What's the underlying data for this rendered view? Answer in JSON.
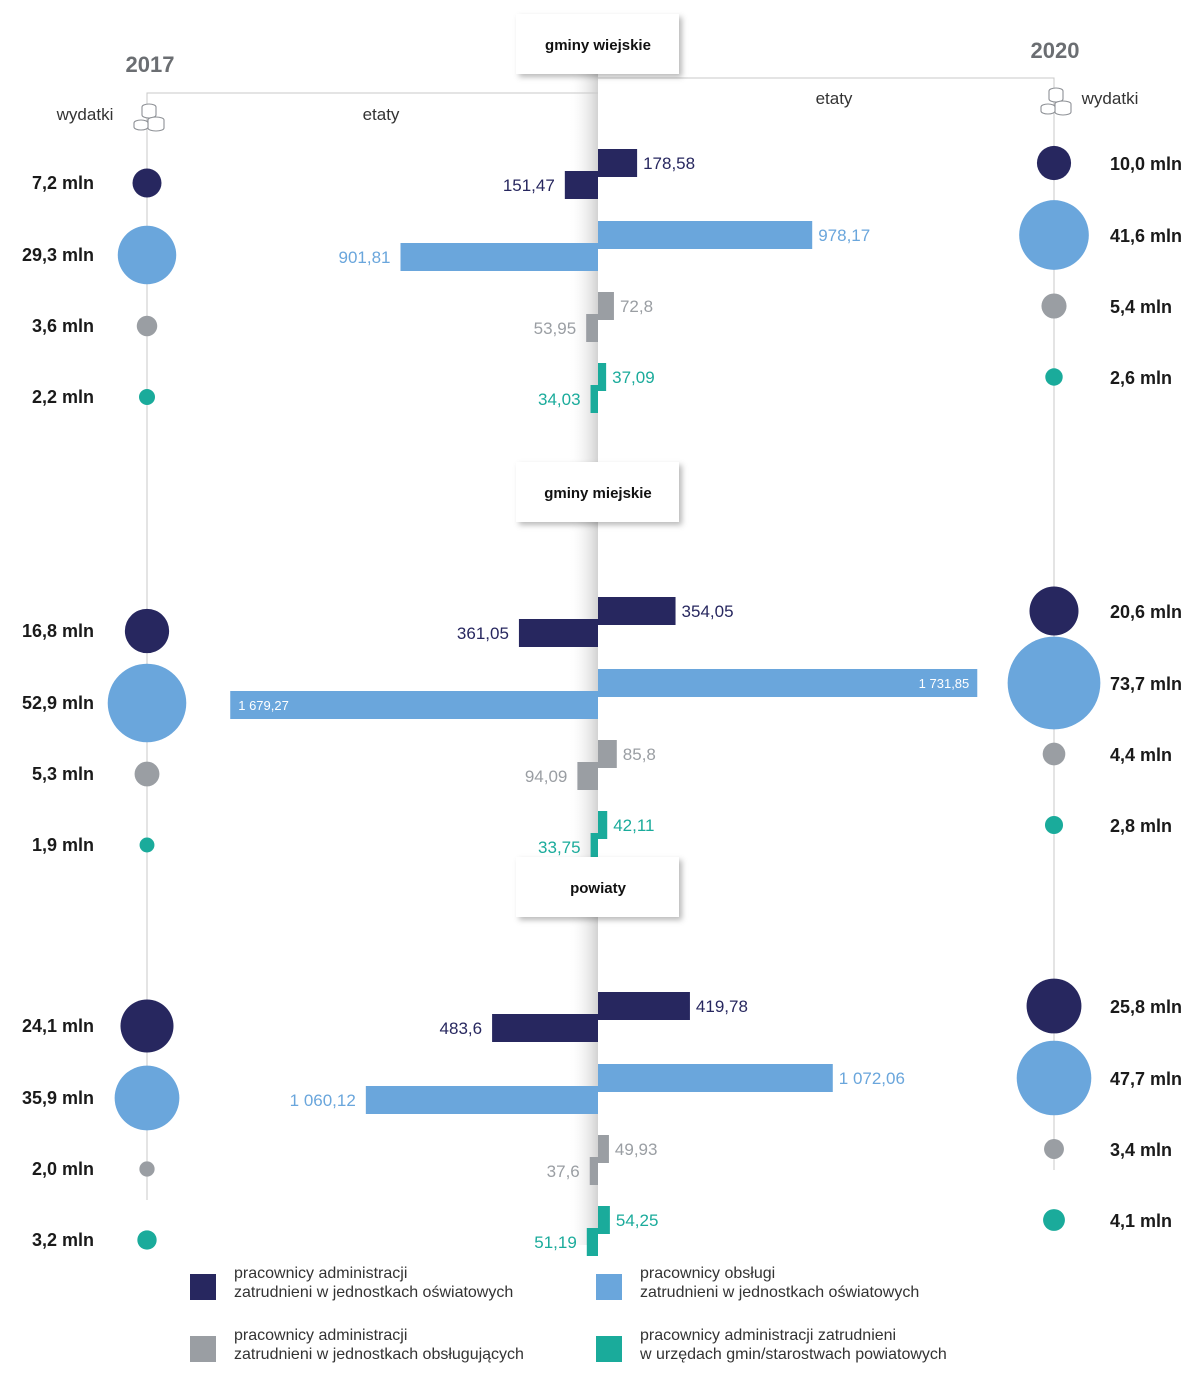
{
  "years": {
    "left": "2017",
    "right": "2020"
  },
  "column_labels": {
    "left_expense": "wydatki",
    "left_etaty": "etaty",
    "right_etaty": "etaty",
    "right_expense": "wydatki"
  },
  "colors": {
    "administracja_oswiatowe": "#27275f",
    "obsluga_oswiatowe": "#6aa6dc",
    "administracja_obslugujace": "#9a9ea3",
    "administracja_urzedy": "#1aab9b",
    "year_text": "#6b6e72",
    "axis_line": "#c8c8c8"
  },
  "legend": [
    {
      "color_key": "administracja_oswiatowe",
      "line1": "pracownicy administracji",
      "line2": "zatrudnieni w jednostkach oświatowych"
    },
    {
      "color_key": "obsluga_oswiatowe",
      "line1": "pracownicy obsługi",
      "line2": "zatrudnieni w jednostkach oświatowych"
    },
    {
      "color_key": "administracja_obslugujace",
      "line1": "pracownicy administracji",
      "line2": "zatrudnieni w jednostkach obsługujących"
    },
    {
      "color_key": "administracja_urzedy",
      "line1": "pracownicy administracji zatrudnieni",
      "line2": "w urzędach gmin/starostwach powiatowych"
    }
  ],
  "chart_data": {
    "type": "bar",
    "orientation": "horizontal, diverging (2017 to the left, 2020 to the right)",
    "units": {
      "bars": "etaty",
      "circles": "wydatki (mln)"
    },
    "groups": [
      {
        "name": "gminy wiejskie",
        "rows": [
          {
            "color_key": "administracja_oswiatowe",
            "etaty_2017": 151.47,
            "etaty_2017_label": "151,47",
            "etaty_2020": 178.58,
            "etaty_2020_label": "178,58",
            "wydatki_2017": 7.2,
            "wydatki_2017_label": "7,2 mln",
            "wydatki_2020": 10.0,
            "wydatki_2020_label": "10,0 mln"
          },
          {
            "color_key": "obsluga_oswiatowe",
            "etaty_2017": 901.81,
            "etaty_2017_label": "901,81",
            "etaty_2020": 978.17,
            "etaty_2020_label": "978,17",
            "wydatki_2017": 29.3,
            "wydatki_2017_label": "29,3 mln",
            "wydatki_2020": 41.6,
            "wydatki_2020_label": "41,6 mln"
          },
          {
            "color_key": "administracja_obslugujace",
            "etaty_2017": 53.95,
            "etaty_2017_label": "53,95",
            "etaty_2020": 72.8,
            "etaty_2020_label": "72,8",
            "wydatki_2017": 3.6,
            "wydatki_2017_label": "3,6 mln",
            "wydatki_2020": 5.4,
            "wydatki_2020_label": "5,4 mln"
          },
          {
            "color_key": "administracja_urzedy",
            "etaty_2017": 34.03,
            "etaty_2017_label": "34,03",
            "etaty_2020": 37.09,
            "etaty_2020_label": "37,09",
            "wydatki_2017": 2.2,
            "wydatki_2017_label": "2,2 mln",
            "wydatki_2020": 2.6,
            "wydatki_2020_label": "2,6 mln"
          }
        ]
      },
      {
        "name": "gminy miejskie",
        "rows": [
          {
            "color_key": "administracja_oswiatowe",
            "etaty_2017": 361.05,
            "etaty_2017_label": "361,05",
            "etaty_2020": 354.05,
            "etaty_2020_label": "354,05",
            "wydatki_2017": 16.8,
            "wydatki_2017_label": "16,8 mln",
            "wydatki_2020": 20.6,
            "wydatki_2020_label": "20,6 mln"
          },
          {
            "color_key": "obsluga_oswiatowe",
            "etaty_2017": 1679.27,
            "etaty_2017_label": "1 679,27",
            "etaty_2020": 1731.85,
            "etaty_2020_label": "1 731,85",
            "wydatki_2017": 52.9,
            "wydatki_2017_label": "52,9 mln",
            "wydatki_2020": 73.7,
            "wydatki_2020_label": "73,7 mln"
          },
          {
            "color_key": "administracja_obslugujace",
            "etaty_2017": 94.09,
            "etaty_2017_label": "94,09",
            "etaty_2020": 85.8,
            "etaty_2020_label": "85,8",
            "wydatki_2017": 5.3,
            "wydatki_2017_label": "5,3 mln",
            "wydatki_2020": 4.4,
            "wydatki_2020_label": "4,4 mln"
          },
          {
            "color_key": "administracja_urzedy",
            "etaty_2017": 33.75,
            "etaty_2017_label": "33,75",
            "etaty_2020": 42.11,
            "etaty_2020_label": "42,11",
            "wydatki_2017": 1.9,
            "wydatki_2017_label": "1,9 mln",
            "wydatki_2020": 2.8,
            "wydatki_2020_label": "2,8 mln"
          }
        ]
      },
      {
        "name": "powiaty",
        "rows": [
          {
            "color_key": "administracja_oswiatowe",
            "etaty_2017": 483.6,
            "etaty_2017_label": "483,6",
            "etaty_2020": 419.78,
            "etaty_2020_label": "419,78",
            "wydatki_2017": 24.1,
            "wydatki_2017_label": "24,1 mln",
            "wydatki_2020": 25.8,
            "wydatki_2020_label": "25,8 mln"
          },
          {
            "color_key": "obsluga_oswiatowe",
            "etaty_2017": 1060.12,
            "etaty_2017_label": "1 060,12",
            "etaty_2020": 1072.06,
            "etaty_2020_label": "1 072,06",
            "wydatki_2017": 35.9,
            "wydatki_2017_label": "35,9 mln",
            "wydatki_2020": 47.7,
            "wydatki_2020_label": "47,7 mln"
          },
          {
            "color_key": "administracja_obslugujace",
            "etaty_2017": 37.6,
            "etaty_2017_label": "37,6",
            "etaty_2020": 49.93,
            "etaty_2020_label": "49,93",
            "wydatki_2017": 2.0,
            "wydatki_2017_label": "2,0 mln",
            "wydatki_2020": 3.4,
            "wydatki_2020_label": "3,4 mln"
          },
          {
            "color_key": "administracja_urzedy",
            "etaty_2017": 51.19,
            "etaty_2017_label": "51,19",
            "etaty_2020": 54.25,
            "etaty_2020_label": "54,25",
            "wydatki_2017": 3.2,
            "wydatki_2017_label": "3,2 mln",
            "wydatki_2020": 4.1,
            "wydatki_2020_label": "4,1 mln"
          }
        ]
      }
    ]
  }
}
